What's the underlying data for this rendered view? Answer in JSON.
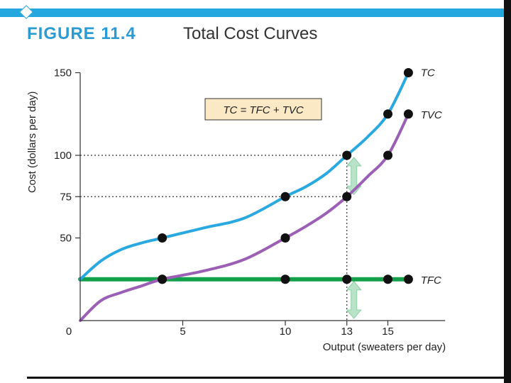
{
  "header": {
    "figure_label": "FIGURE 11.4",
    "figure_title": "Total Cost Curves"
  },
  "chart_data": {
    "type": "line",
    "title": "Total Cost Curves",
    "xlabel": "Output (sweaters per day)",
    "ylabel": "Cost (dollars per day)",
    "xlim": [
      0,
      18
    ],
    "ylim": [
      0,
      150
    ],
    "x_ticks": [
      0,
      5,
      10,
      13,
      15
    ],
    "y_ticks": [
      50,
      75,
      100,
      150
    ],
    "annotation": "TC = TFC + TVC",
    "series": [
      {
        "name": "TC",
        "color": "#29a9e0",
        "curve": [
          [
            0,
            25
          ],
          [
            1,
            36
          ],
          [
            2,
            43
          ],
          [
            3,
            47
          ],
          [
            4,
            50
          ],
          [
            6,
            56
          ],
          [
            8,
            62
          ],
          [
            10,
            75
          ],
          [
            11,
            81
          ],
          [
            12,
            89
          ],
          [
            13,
            100
          ],
          [
            14,
            111
          ],
          [
            15,
            125
          ],
          [
            16,
            150
          ]
        ],
        "points": [
          [
            4,
            50
          ],
          [
            10,
            75
          ],
          [
            13,
            100
          ],
          [
            15,
            125
          ],
          [
            16,
            150
          ]
        ]
      },
      {
        "name": "TVC",
        "color": "#9b5fb5",
        "curve": [
          [
            0,
            0
          ],
          [
            1,
            12
          ],
          [
            2,
            17
          ],
          [
            3,
            21
          ],
          [
            4,
            25
          ],
          [
            6,
            30
          ],
          [
            8,
            37
          ],
          [
            10,
            50
          ],
          [
            11,
            57
          ],
          [
            12,
            65
          ],
          [
            13,
            75
          ],
          [
            14,
            87
          ],
          [
            15,
            100
          ],
          [
            16,
            125
          ]
        ],
        "points": [
          [
            4,
            25
          ],
          [
            10,
            50
          ],
          [
            13,
            75
          ],
          [
            15,
            100
          ],
          [
            16,
            125
          ]
        ]
      },
      {
        "name": "TFC",
        "color": "#14a04a",
        "curve": [
          [
            0,
            25
          ],
          [
            16,
            25
          ]
        ],
        "points": [
          [
            4,
            25
          ],
          [
            10,
            25
          ],
          [
            13,
            25
          ],
          [
            15,
            25
          ],
          [
            16,
            25
          ]
        ]
      }
    ]
  }
}
